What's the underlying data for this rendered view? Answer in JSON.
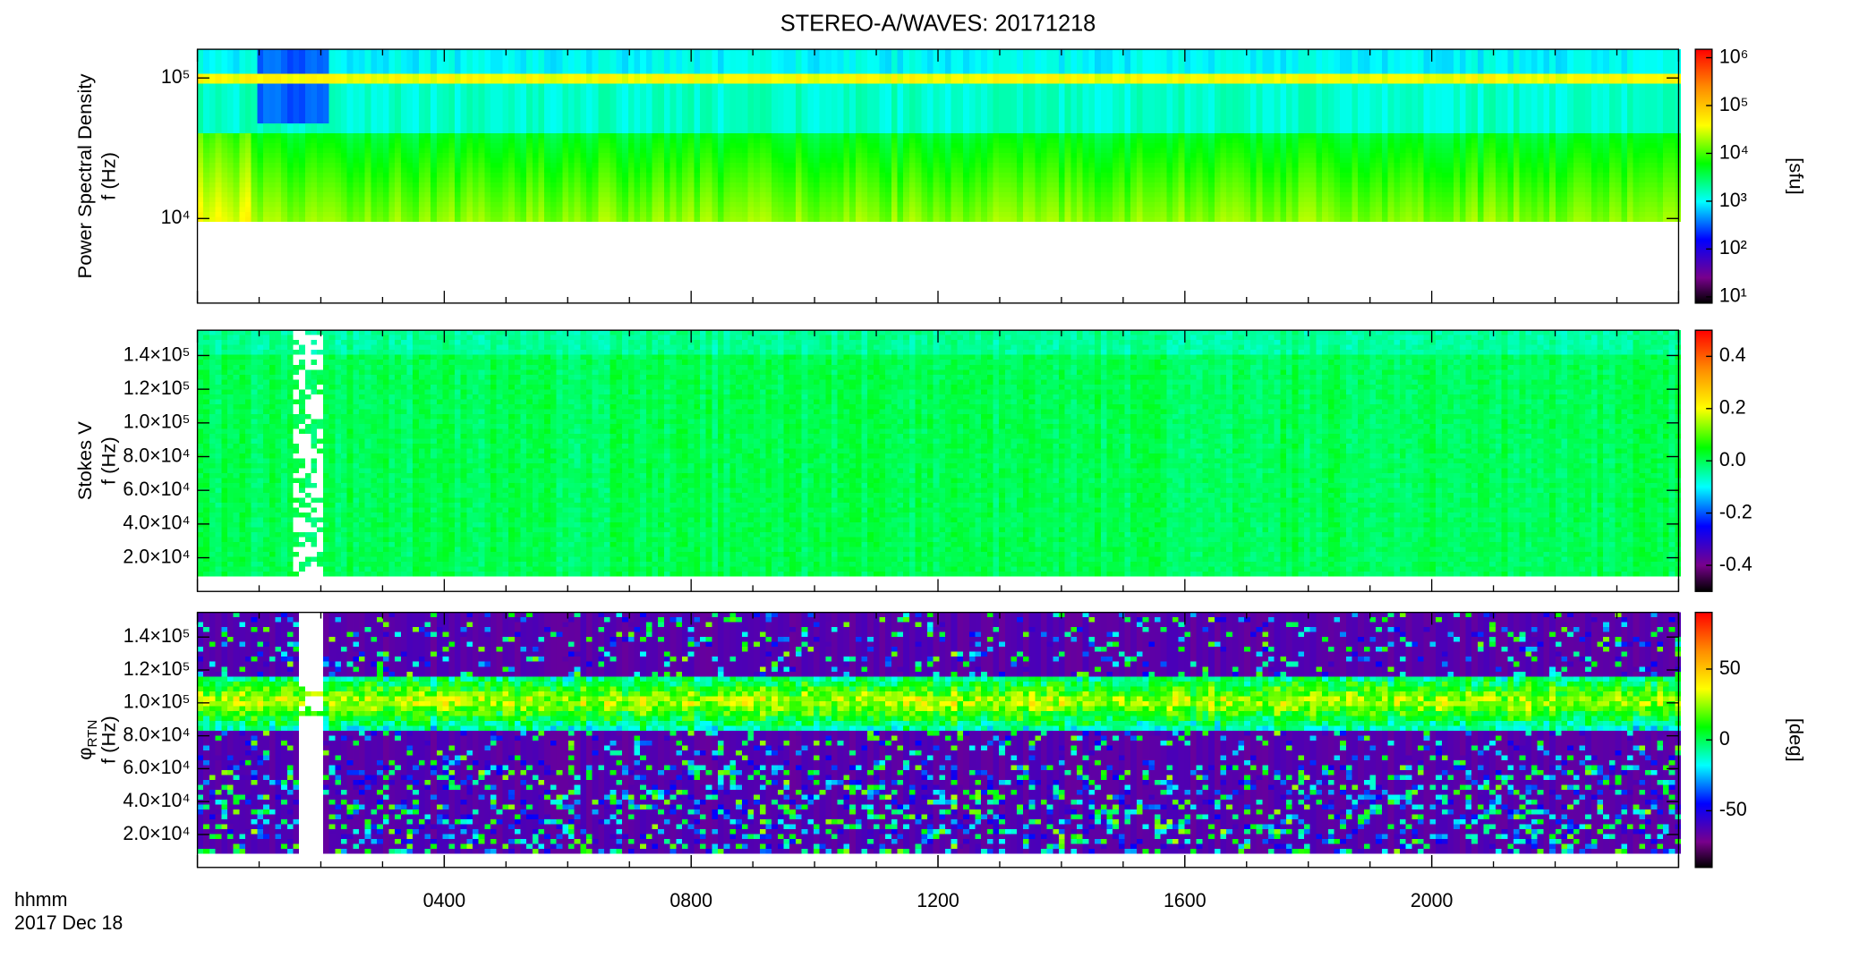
{
  "title": "STEREO-A/WAVES: 20171218",
  "x_unit_label": "hhmm",
  "date_label": "2017 Dec 18",
  "chart_data": [
    {
      "type": "heatmap",
      "ylabel": [
        "Power Spectral Density",
        "f (Hz)"
      ],
      "ylog": true,
      "ylim": [
        2500,
        160000
      ],
      "yticks": [
        {
          "value": 10000,
          "label": "10⁴"
        },
        {
          "value": 100000,
          "label": "10⁵"
        }
      ],
      "xlim": [
        0,
        24
      ],
      "zlog": true,
      "zlim": [
        7.4,
        1500000
      ],
      "zticks": [
        {
          "value": 10,
          "label": "10¹"
        },
        {
          "value": 100,
          "label": "10²"
        },
        {
          "value": 1000,
          "label": "10³"
        },
        {
          "value": 10000,
          "label": "10⁴"
        },
        {
          "value": 100000,
          "label": "10⁵"
        },
        {
          "value": 1000000,
          "label": "10⁶"
        }
      ],
      "zlabel": "[sfu]"
    },
    {
      "type": "heatmap",
      "ylabel": [
        "Stokes V",
        "f (Hz)"
      ],
      "ylog": false,
      "ylim": [
        0,
        155000
      ],
      "yticks": [
        {
          "value": 20000,
          "label": "2.0×10⁴"
        },
        {
          "value": 40000,
          "label": "4.0×10⁴"
        },
        {
          "value": 60000,
          "label": "6.0×10⁴"
        },
        {
          "value": 80000,
          "label": "8.0×10⁴"
        },
        {
          "value": 100000,
          "label": "1.0×10⁵"
        },
        {
          "value": 120000,
          "label": "1.2×10⁵"
        },
        {
          "value": 140000,
          "label": "1.4×10⁵"
        }
      ],
      "xlim": [
        0,
        24
      ],
      "zlog": false,
      "zlim": [
        -0.5,
        0.5
      ],
      "zticks": [
        -0.4,
        -0.2,
        {
          "value": 0,
          "label": "0.0"
        },
        0.2,
        0.4
      ]
    },
    {
      "type": "heatmap",
      "ylabel": [
        "φ",
        "f (Hz)"
      ],
      "ylabel_sub": "RTN",
      "ylog": false,
      "ylim": [
        0,
        155000
      ],
      "yticks": [
        {
          "value": 20000,
          "label": "2.0×10⁴"
        },
        {
          "value": 40000,
          "label": "4.0×10⁴"
        },
        {
          "value": 60000,
          "label": "6.0×10⁴"
        },
        {
          "value": 80000,
          "label": "8.0×10⁴"
        },
        {
          "value": 100000,
          "label": "1.0×10⁵"
        },
        {
          "value": 120000,
          "label": "1.2×10⁵"
        },
        {
          "value": 140000,
          "label": "1.4×10⁵"
        }
      ],
      "xlim": [
        0,
        24
      ],
      "xticks": [
        {
          "value": 4,
          "label": "0400"
        },
        {
          "value": 8,
          "label": "0800"
        },
        {
          "value": 12,
          "label": "1200"
        },
        {
          "value": 16,
          "label": "1600"
        },
        {
          "value": 20,
          "label": "2000"
        }
      ],
      "zlog": false,
      "zlim": [
        -90,
        90
      ],
      "zticks": [
        -50,
        0,
        50
      ],
      "zlabel": "[deg]"
    }
  ]
}
